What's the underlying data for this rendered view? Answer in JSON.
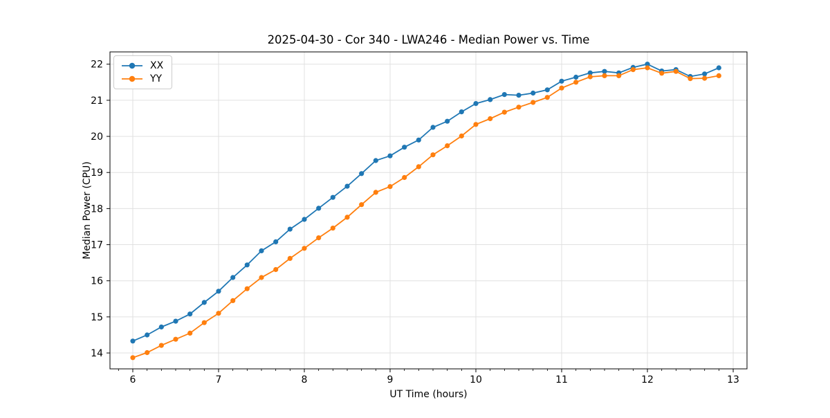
{
  "figure": {
    "title": "2025-04-30 - Cor 340 - LWA246 - Median Power vs. Time",
    "xlabel": "UT Time (hours)",
    "ylabel": "Median Power (CPU)"
  },
  "legend": {
    "items": [
      {
        "label": "XX",
        "color": "#1f77b4"
      },
      {
        "label": "YY",
        "color": "#ff7f0e"
      }
    ]
  },
  "chart_data": {
    "type": "line",
    "title": "2025-04-30 - Cor 340 - LWA246 - Median Power vs. Time",
    "xlabel": "UT Time (hours)",
    "ylabel": "Median Power (CPU)",
    "grid": true,
    "legend_position": "upper-left",
    "marker": "circle",
    "xlim": [
      5.734,
      13.161
    ],
    "ylim": [
      13.56,
      22.34
    ],
    "x_ticks": [
      6,
      7,
      8,
      9,
      10,
      11,
      12,
      13
    ],
    "y_ticks": [
      14,
      15,
      16,
      17,
      18,
      19,
      20,
      21,
      22
    ],
    "x_minor_tick_step": 0.16667,
    "grid_color": "#e0e0e0",
    "x": [
      6.0,
      6.167,
      6.333,
      6.5,
      6.667,
      6.833,
      7.0,
      7.167,
      7.333,
      7.5,
      7.667,
      7.833,
      8.0,
      8.167,
      8.333,
      8.5,
      8.667,
      8.833,
      9.0,
      9.167,
      9.333,
      9.5,
      9.667,
      9.833,
      10.0,
      10.167,
      10.333,
      10.5,
      10.667,
      10.833,
      11.0,
      11.167,
      11.333,
      11.5,
      11.667,
      11.833,
      12.0,
      12.167,
      12.333,
      12.5,
      12.667,
      12.833
    ],
    "series": [
      {
        "name": "XX",
        "color": "#1f77b4",
        "values": [
          14.33,
          14.5,
          14.72,
          14.88,
          15.08,
          15.4,
          15.71,
          16.09,
          16.44,
          16.83,
          17.08,
          17.43,
          17.7,
          18.01,
          18.31,
          18.62,
          18.97,
          19.33,
          19.46,
          19.7,
          19.9,
          20.25,
          20.42,
          20.68,
          20.91,
          21.02,
          21.16,
          21.14,
          21.2,
          21.29,
          21.53,
          21.64,
          21.76,
          21.8,
          21.76,
          21.91,
          22.0,
          21.81,
          21.85,
          21.66,
          21.73,
          21.9
        ]
      },
      {
        "name": "YY",
        "color": "#ff7f0e",
        "values": [
          13.87,
          14.01,
          14.21,
          14.38,
          14.55,
          14.84,
          15.1,
          15.45,
          15.78,
          16.09,
          16.31,
          16.62,
          16.9,
          17.19,
          17.46,
          17.76,
          18.11,
          18.45,
          18.61,
          18.86,
          19.16,
          19.49,
          19.74,
          20.01,
          20.33,
          20.49,
          20.67,
          20.81,
          20.94,
          21.08,
          21.34,
          21.5,
          21.65,
          21.68,
          21.68,
          21.85,
          21.9,
          21.75,
          21.8,
          21.6,
          21.61,
          21.68
        ]
      }
    ]
  }
}
